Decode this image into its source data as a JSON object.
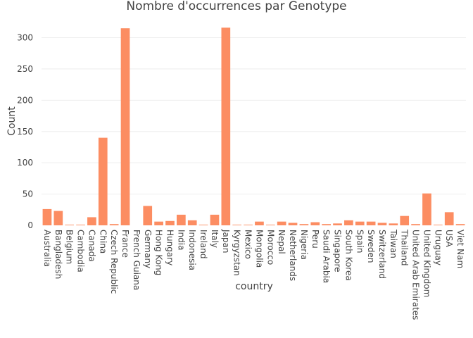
{
  "chart_data": {
    "type": "bar",
    "title": "Nombre d'occurrences par Genotype",
    "xlabel": "country",
    "ylabel": "Count",
    "ylim": [
      0,
      330
    ],
    "yticks": [
      0,
      50,
      100,
      150,
      200,
      250,
      300
    ],
    "grid": "horizontal",
    "bar_color": "#FC8D62",
    "categories": [
      "Australia",
      "Bangladesh",
      "Belgium",
      "Cambodia",
      "Canada",
      "China",
      "Czech Republic",
      "France",
      "French Guiana",
      "Germany",
      "Hong Kong",
      "Hungary",
      "India",
      "Indonesia",
      "Ireland",
      "Italy",
      "Japan",
      "Kyrgyzstan",
      "Mexico",
      "Mongolia",
      "Morocco",
      "Nepal",
      "Netherlands",
      "Nigeria",
      "Peru",
      "Saudi Arabia",
      "Singapore",
      "South Korea",
      "Spain",
      "Sweden",
      "Switzerland",
      "Taiwan",
      "Thailand",
      "United Arab Emirates",
      "United Kingdom",
      "Uruguay",
      "USA",
      "Viet Nam"
    ],
    "values": [
      26,
      23,
      1,
      1,
      13,
      140,
      2,
      315,
      0,
      31,
      6,
      7,
      17,
      8,
      1,
      17,
      316,
      1,
      1,
      6,
      1,
      6,
      4,
      2,
      5,
      2,
      3,
      8,
      6,
      6,
      4,
      3,
      15,
      2,
      51,
      1,
      21,
      2
    ]
  }
}
